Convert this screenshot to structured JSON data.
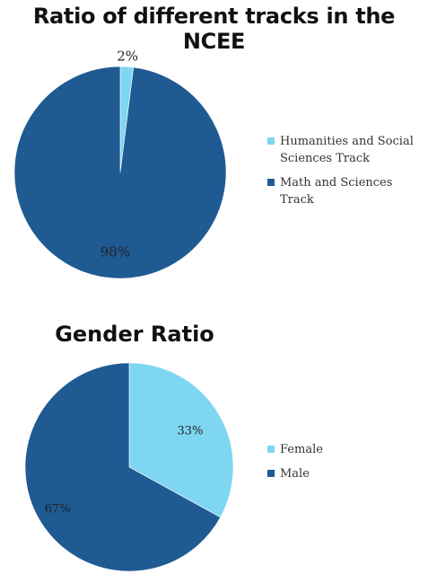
{
  "chart_data": [
    {
      "type": "pie",
      "title": "Ratio of different tracks in the NCEE",
      "categories": [
        "Humanities and Social Sciences Track",
        "Math and Sciences Track"
      ],
      "values": [
        2,
        98
      ],
      "data_labels": [
        "2%",
        "98%"
      ],
      "colors": [
        "#7FD6F2",
        "#1F5A93"
      ],
      "legend": "right"
    },
    {
      "type": "pie",
      "title": "Gender Ratio",
      "categories": [
        "Female",
        "Male"
      ],
      "values": [
        33,
        67
      ],
      "data_labels": [
        "33%",
        "67%"
      ],
      "colors": [
        "#7FD6F2",
        "#1F5A93"
      ],
      "legend": "right"
    }
  ]
}
